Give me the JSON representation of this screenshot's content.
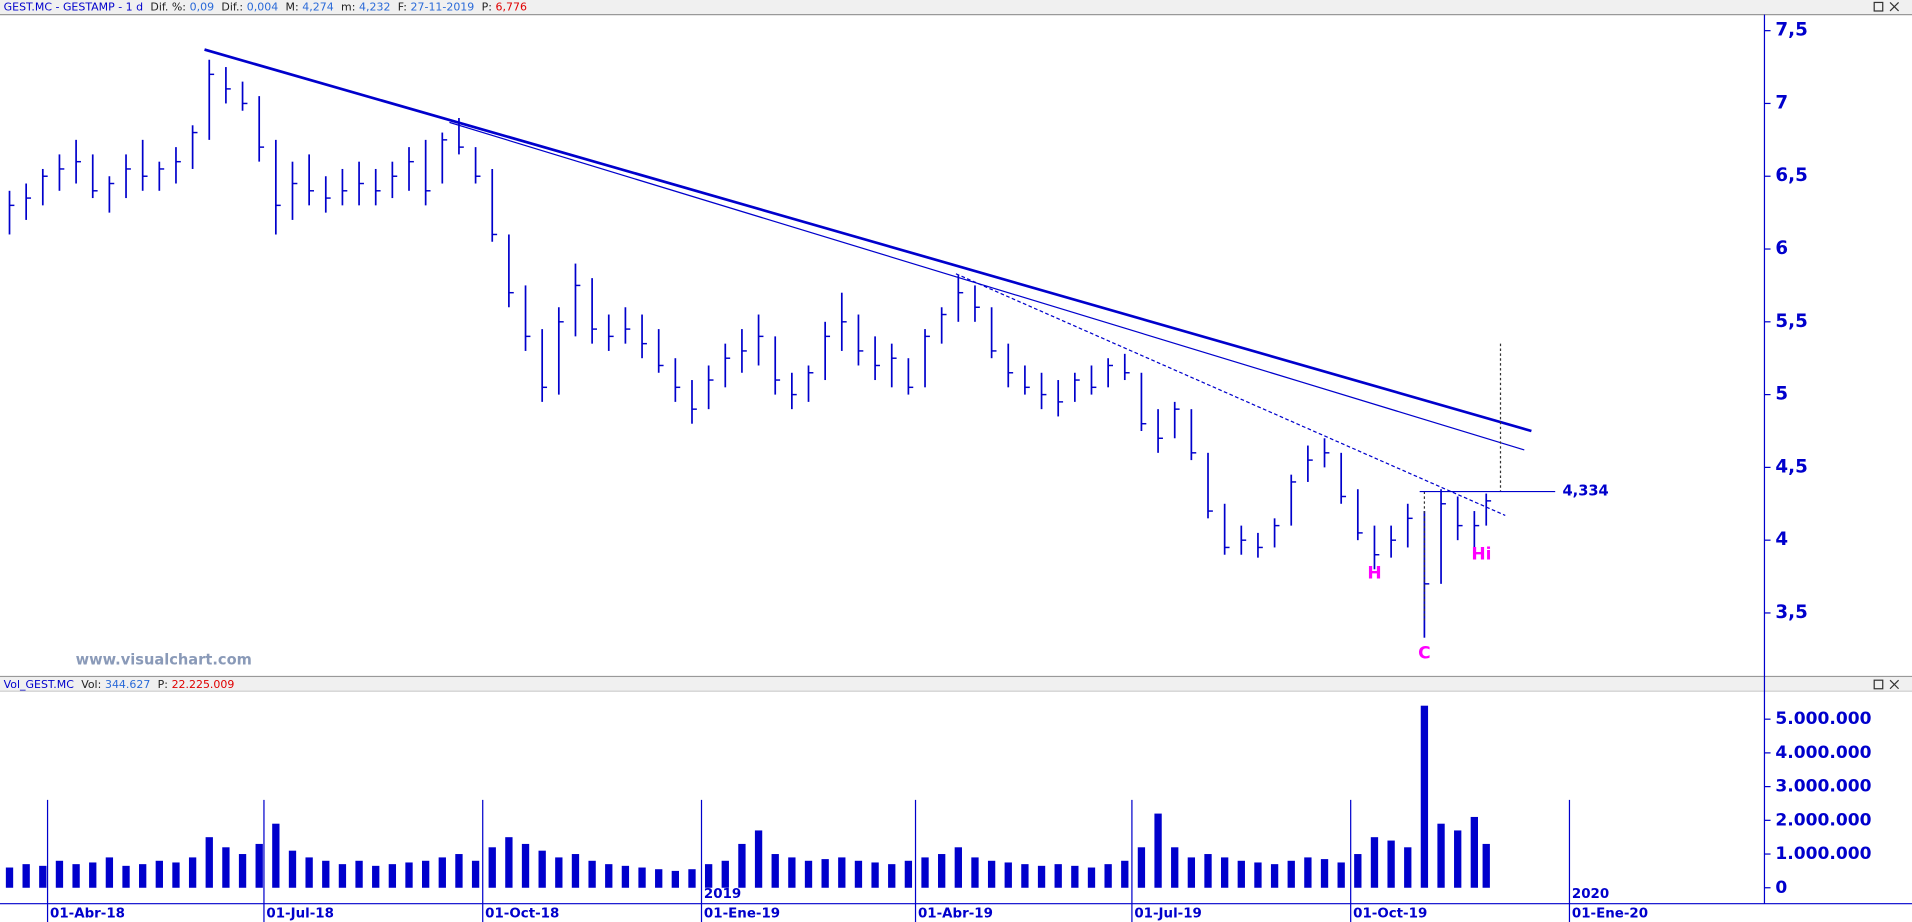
{
  "chart_data": [
    {
      "type": "ohlc",
      "title": "GEST.MC - GESTAMP - 1 d",
      "header": [
        {
          "label": "Dif. %:",
          "value": "0,09"
        },
        {
          "label": "Dif.:",
          "value": "0,004"
        },
        {
          "label": "M:",
          "value": "4,274"
        },
        {
          "label": "m:",
          "value": "4,232"
        },
        {
          "label": "F:",
          "value": "27-11-2019"
        },
        {
          "label": "P:",
          "value": "6,776"
        }
      ],
      "watermark": "www.visualchart.com",
      "color": "#0000cc",
      "x": [
        "2018-03-16",
        "2018-03-23",
        "2018-03-30",
        "2018-04-06",
        "2018-04-13",
        "2018-04-20",
        "2018-04-27",
        "2018-05-04",
        "2018-05-11",
        "2018-05-18",
        "2018-05-25",
        "2018-06-01",
        "2018-06-08",
        "2018-06-15",
        "2018-06-22",
        "2018-06-29",
        "2018-07-06",
        "2018-07-13",
        "2018-07-20",
        "2018-07-27",
        "2018-08-03",
        "2018-08-10",
        "2018-08-17",
        "2018-08-24",
        "2018-08-31",
        "2018-09-07",
        "2018-09-14",
        "2018-09-21",
        "2018-09-28",
        "2018-10-05",
        "2018-10-12",
        "2018-10-19",
        "2018-10-26",
        "2018-11-02",
        "2018-11-09",
        "2018-11-16",
        "2018-11-23",
        "2018-11-30",
        "2018-12-07",
        "2018-12-14",
        "2018-12-21",
        "2018-12-28",
        "2019-01-04",
        "2019-01-11",
        "2019-01-18",
        "2019-01-25",
        "2019-02-01",
        "2019-02-08",
        "2019-02-15",
        "2019-02-22",
        "2019-03-01",
        "2019-03-08",
        "2019-03-15",
        "2019-03-22",
        "2019-03-29",
        "2019-04-05",
        "2019-04-12",
        "2019-04-19",
        "2019-04-26",
        "2019-05-03",
        "2019-05-10",
        "2019-05-17",
        "2019-05-24",
        "2019-05-31",
        "2019-06-07",
        "2019-06-14",
        "2019-06-21",
        "2019-06-28",
        "2019-07-05",
        "2019-07-12",
        "2019-07-19",
        "2019-07-26",
        "2019-08-02",
        "2019-08-09",
        "2019-08-16",
        "2019-08-23",
        "2019-08-30",
        "2019-09-06",
        "2019-09-13",
        "2019-09-20",
        "2019-09-27",
        "2019-10-04",
        "2019-10-11",
        "2019-10-18",
        "2019-10-25",
        "2019-11-01",
        "2019-11-08",
        "2019-11-15",
        "2019-11-22",
        "2019-11-27"
      ],
      "low": [
        6.1,
        6.2,
        6.3,
        6.4,
        6.45,
        6.35,
        6.25,
        6.35,
        6.4,
        6.4,
        6.45,
        6.55,
        6.75,
        7.0,
        6.95,
        6.6,
        6.1,
        6.2,
        6.3,
        6.25,
        6.3,
        6.3,
        6.3,
        6.35,
        6.4,
        6.3,
        6.45,
        6.65,
        6.45,
        6.05,
        5.6,
        5.3,
        4.95,
        5.0,
        5.4,
        5.35,
        5.3,
        5.35,
        5.25,
        5.15,
        4.95,
        4.8,
        4.9,
        5.05,
        5.15,
        5.2,
        5.0,
        4.9,
        4.95,
        5.1,
        5.3,
        5.2,
        5.1,
        5.05,
        5.0,
        5.05,
        5.35,
        5.5,
        5.5,
        5.25,
        5.05,
        5.0,
        4.9,
        4.85,
        4.95,
        5.0,
        5.05,
        5.1,
        4.75,
        4.6,
        4.7,
        4.55,
        4.15,
        3.9,
        3.9,
        3.88,
        3.95,
        4.1,
        4.4,
        4.5,
        4.25,
        4.0,
        3.8,
        3.88,
        3.95,
        3.33,
        3.7,
        4.0,
        3.92,
        4.1
      ],
      "high": [
        6.4,
        6.45,
        6.55,
        6.65,
        6.75,
        6.65,
        6.5,
        6.65,
        6.75,
        6.6,
        6.7,
        6.85,
        7.3,
        7.25,
        7.15,
        7.05,
        6.75,
        6.6,
        6.65,
        6.5,
        6.55,
        6.6,
        6.55,
        6.6,
        6.7,
        6.75,
        6.8,
        6.9,
        6.7,
        6.55,
        6.1,
        5.75,
        5.45,
        5.6,
        5.9,
        5.8,
        5.55,
        5.6,
        5.55,
        5.45,
        5.25,
        5.1,
        5.2,
        5.35,
        5.45,
        5.55,
        5.4,
        5.15,
        5.2,
        5.5,
        5.7,
        5.55,
        5.4,
        5.35,
        5.25,
        5.45,
        5.6,
        5.82,
        5.75,
        5.6,
        5.35,
        5.2,
        5.15,
        5.1,
        5.15,
        5.2,
        5.25,
        5.28,
        5.15,
        4.9,
        4.95,
        4.9,
        4.6,
        4.25,
        4.1,
        4.05,
        4.15,
        4.45,
        4.65,
        4.7,
        4.6,
        4.35,
        4.1,
        4.1,
        4.25,
        4.2,
        4.35,
        4.3,
        4.2,
        4.32
      ],
      "close": [
        6.3,
        6.35,
        6.5,
        6.55,
        6.6,
        6.4,
        6.45,
        6.55,
        6.5,
        6.55,
        6.6,
        6.8,
        7.2,
        7.1,
        7.0,
        6.7,
        6.3,
        6.45,
        6.4,
        6.35,
        6.4,
        6.45,
        6.4,
        6.5,
        6.6,
        6.4,
        6.75,
        6.7,
        6.5,
        6.1,
        5.7,
        5.4,
        5.05,
        5.5,
        5.75,
        5.45,
        5.4,
        5.45,
        5.35,
        5.2,
        5.05,
        4.9,
        5.1,
        5.25,
        5.3,
        5.4,
        5.1,
        5.0,
        5.15,
        5.4,
        5.5,
        5.3,
        5.2,
        5.25,
        5.05,
        5.4,
        5.55,
        5.7,
        5.6,
        5.3,
        5.15,
        5.05,
        5.0,
        4.95,
        5.1,
        5.05,
        5.2,
        5.15,
        4.8,
        4.7,
        4.9,
        4.6,
        4.2,
        3.95,
        4.0,
        3.95,
        4.1,
        4.4,
        4.55,
        4.6,
        4.3,
        4.05,
        3.9,
        4.0,
        4.15,
        3.7,
        4.25,
        4.1,
        4.1,
        4.27
      ],
      "xlim": [
        "2018-03-12",
        "2020-03-23"
      ],
      "xticks": [
        {
          "value": "2018-04-01",
          "label": "01-Abr-18"
        },
        {
          "value": "2018-07-01",
          "label": "01-Jul-18"
        },
        {
          "value": "2018-10-01",
          "label": "01-Oct-18"
        },
        {
          "value": "2019-01-01",
          "label": "01-Ene-19"
        },
        {
          "value": "2019-04-01",
          "label": "01-Abr-19"
        },
        {
          "value": "2019-07-01",
          "label": "01-Jul-19"
        },
        {
          "value": "2019-10-01",
          "label": "01-Oct-19"
        },
        {
          "value": "2020-01-01",
          "label": "01-Ene-20"
        }
      ],
      "year_labels": [
        {
          "value": "2019-01-01",
          "label": "2019"
        },
        {
          "value": "2020-01-01",
          "label": "2020"
        }
      ],
      "ylim": [
        3.08,
        7.61
      ],
      "yticks": [
        {
          "value": 3.5,
          "label": "3,5"
        },
        4,
        {
          "value": 4.5,
          "label": "4,5"
        },
        5,
        {
          "value": 5.5,
          "label": "5,5"
        },
        6,
        {
          "value": 6.5,
          "label": "6,5"
        },
        7,
        {
          "value": 7.5,
          "label": "7,5"
        }
      ],
      "trendlines": [
        {
          "x": [
            "2018-06-06",
            "2019-12-16"
          ],
          "y": [
            7.37,
            4.75
          ],
          "style": "thick"
        },
        {
          "x": [
            "2018-09-17",
            "2019-12-13"
          ],
          "y": [
            6.87,
            4.62
          ],
          "style": "thin"
        },
        {
          "x": [
            "2019-04-18",
            "2019-12-05"
          ],
          "y": [
            5.83,
            4.17
          ],
          "style": "dashed"
        },
        {
          "x": [
            "2019-12-03",
            "2019-12-03"
          ],
          "y": [
            5.35,
            4.334
          ],
          "style": "dotted"
        },
        {
          "x": [
            "2019-11-01",
            "2019-11-01"
          ],
          "y": [
            4.334,
            3.45
          ],
          "style": "dotted"
        }
      ],
      "level": {
        "value": 4.334,
        "label": "4,334",
        "from": "2019-10-30",
        "to": "2019-12-26"
      },
      "annotations": [
        {
          "text": "H",
          "x": "2019-10-11",
          "y": 3.77
        },
        {
          "text": "Hi",
          "x": "2019-11-25",
          "y": 3.9
        },
        {
          "text": "C",
          "x": "2019-11-01",
          "y": 3.22
        }
      ],
      "annotation_color": "#ff00ff"
    },
    {
      "type": "bar",
      "title": "Vol_GEST.MC",
      "header": [
        {
          "label": "Vol:",
          "value": "344.627"
        },
        {
          "label": "P:",
          "value": "22.225.009"
        }
      ],
      "color": "#0000cc",
      "values": [
        600000,
        700000,
        650000,
        800000,
        700000,
        750000,
        900000,
        650000,
        700000,
        800000,
        750000,
        900000,
        1500000,
        1200000,
        1000000,
        1300000,
        1900000,
        1100000,
        900000,
        800000,
        700000,
        800000,
        650000,
        700000,
        750000,
        800000,
        900000,
        1000000,
        800000,
        1200000,
        1500000,
        1300000,
        1100000,
        900000,
        1000000,
        800000,
        700000,
        650000,
        600000,
        550000,
        500000,
        550000,
        700000,
        800000,
        1300000,
        1700000,
        1000000,
        900000,
        800000,
        850000,
        900000,
        800000,
        750000,
        700000,
        800000,
        900000,
        1000000,
        1200000,
        900000,
        800000,
        750000,
        700000,
        650000,
        700000,
        650000,
        600000,
        700000,
        800000,
        1200000,
        2200000,
        1200000,
        900000,
        1000000,
        900000,
        800000,
        750000,
        700000,
        800000,
        900000,
        850000,
        750000,
        1000000,
        1500000,
        1400000,
        1200000,
        5400000,
        1900000,
        1700000,
        2100000,
        1300000
      ],
      "ylim": [
        -400000,
        5830000
      ],
      "yticks": [
        0,
        {
          "value": 1000000,
          "label": "1.000.000"
        },
        {
          "value": 2000000,
          "label": "2.000.000"
        },
        {
          "value": 3000000,
          "label": "3.000.000"
        },
        {
          "value": 4000000,
          "label": "4.000.000"
        },
        {
          "value": 5000000,
          "label": "5.000.000"
        }
      ]
    }
  ]
}
